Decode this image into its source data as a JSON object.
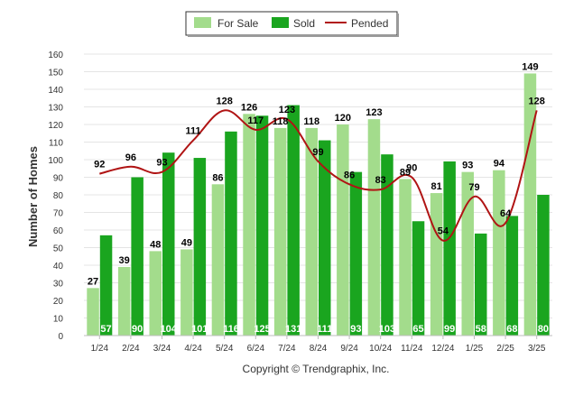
{
  "chart_data": {
    "type": "bar",
    "categories": [
      "1/24",
      "2/24",
      "3/24",
      "4/24",
      "5/24",
      "6/24",
      "7/24",
      "8/24",
      "9/24",
      "10/24",
      "11/24",
      "12/24",
      "1/25",
      "2/25",
      "3/25"
    ],
    "series": [
      {
        "name": "For Sale",
        "type": "bar",
        "color": "#a3dc8c",
        "values": [
          27,
          39,
          48,
          49,
          86,
          126,
          118,
          118,
          120,
          123,
          89,
          81,
          93,
          94,
          149
        ]
      },
      {
        "name": "Sold",
        "type": "bar",
        "color": "#1aa51f",
        "values": [
          57,
          90,
          104,
          101,
          116,
          125,
          131,
          111,
          93,
          103,
          65,
          99,
          58,
          68,
          80
        ]
      },
      {
        "name": "Pended",
        "type": "line",
        "color": "#b01414",
        "values": [
          92,
          96,
          93,
          111,
          128,
          117,
          123,
          99,
          86,
          83,
          90,
          54,
          79,
          64,
          128
        ]
      }
    ],
    "ylabel": "Number of Homes",
    "xlabel": "",
    "ylim": [
      0,
      160
    ],
    "yticks": [
      0,
      10,
      20,
      30,
      40,
      50,
      60,
      70,
      80,
      90,
      100,
      110,
      120,
      130,
      140,
      150,
      160
    ],
    "grid": true,
    "legend_position": "top-center"
  },
  "footer": {
    "copyright": "Copyright © Trendgraphix, Inc."
  }
}
